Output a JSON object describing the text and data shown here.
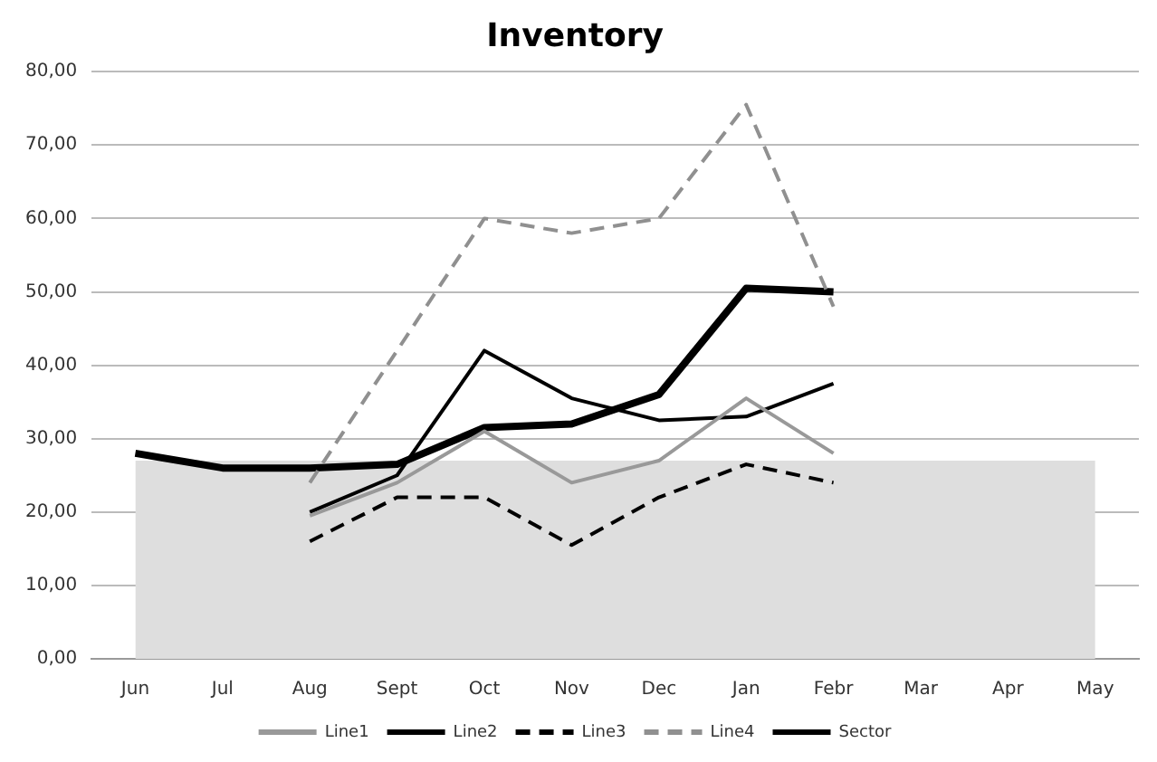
{
  "chart_data": {
    "type": "line",
    "title": "Inventory",
    "categories": [
      "Jun",
      "Jul",
      "Aug",
      "Sept",
      "Oct",
      "Nov",
      "Dec",
      "Jan",
      "Febr",
      "Mar",
      "Apr",
      "May"
    ],
    "series": [
      {
        "type": "area",
        "color": "#dedede",
        "values": [
          27,
          27,
          27,
          27,
          27,
          27,
          27,
          27,
          27,
          27,
          27,
          27
        ]
      },
      {
        "name": "Line1",
        "color": "#999999",
        "line_style": "solid",
        "values": [
          null,
          null,
          19.5,
          24,
          31,
          24,
          27,
          35.5,
          28,
          null,
          null,
          null
        ]
      },
      {
        "name": "Line2",
        "color": "#000000",
        "line_style": "solid",
        "values": [
          null,
          null,
          20,
          25,
          42,
          35.5,
          32.5,
          33,
          37.5,
          null,
          null,
          null
        ]
      },
      {
        "name": "Line3",
        "color": "#000000",
        "line_style": "dashed",
        "values": [
          null,
          null,
          16,
          22,
          22,
          15.5,
          22,
          26.5,
          24,
          null,
          null,
          null
        ]
      },
      {
        "name": "Line4",
        "color": "#909090",
        "line_style": "dashed",
        "values": [
          null,
          null,
          24,
          42,
          60,
          58,
          60,
          75.5,
          48,
          null,
          null,
          null
        ]
      },
      {
        "name": "Sector",
        "color": "#000000",
        "line_style": "solid",
        "values": [
          28,
          26,
          26,
          26.5,
          31.5,
          32,
          36,
          50.5,
          50,
          null,
          null,
          null
        ]
      }
    ],
    "ylim": [
      0,
      80
    ],
    "yticks": [
      {
        "value": 0,
        "label": "0,00"
      },
      {
        "value": 10,
        "label": "10,00"
      },
      {
        "value": 20,
        "label": "20,00"
      },
      {
        "value": 30,
        "label": "30,00"
      },
      {
        "value": 40,
        "label": "40,00"
      },
      {
        "value": 50,
        "label": "50,00"
      },
      {
        "value": 60,
        "label": "60,00"
      },
      {
        "value": 70,
        "label": "70,00"
      },
      {
        "value": 80,
        "label": "80,00"
      }
    ],
    "grid": "y",
    "legend": "bottom",
    "marker": "none"
  }
}
